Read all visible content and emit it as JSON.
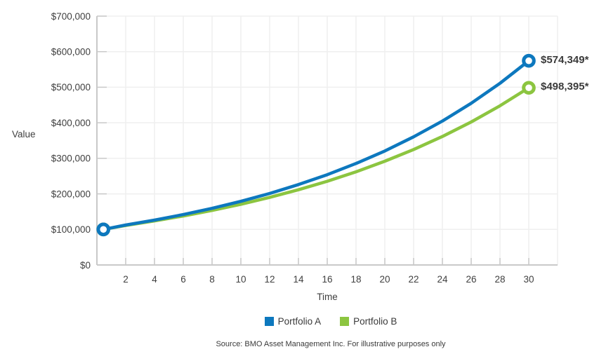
{
  "page": {
    "source_note": "Source: BMO Asset Management Inc. For illustrative purposes only"
  },
  "colors": {
    "portfolio_a": "#0d78be",
    "portfolio_b": "#8cc540",
    "gridline": "#efefef",
    "axis": "#c9c9c9",
    "tick": "#c9c9c9",
    "tick_text": "#404040"
  },
  "chart_data": {
    "type": "line",
    "title": "",
    "xlabel": "Time",
    "ylabel": "Value",
    "xlim": [
      0,
      32
    ],
    "ylim": [
      0,
      700000
    ],
    "grid": true,
    "legend_position": "bottom",
    "x_ticks": [
      2,
      4,
      6,
      8,
      10,
      12,
      14,
      16,
      18,
      20,
      22,
      24,
      26,
      28,
      30
    ],
    "x_grid_step": 2,
    "y_ticks": [
      0,
      100000,
      200000,
      300000,
      400000,
      500000,
      600000,
      700000
    ],
    "y_tick_labels": [
      "$0",
      "$100,000",
      "$200,000",
      "$300,000",
      "$400,000",
      "$500,000",
      "$600,000",
      "$700,000"
    ],
    "x": [
      0,
      2,
      4,
      6,
      8,
      10,
      12,
      14,
      16,
      18,
      20,
      22,
      24,
      26,
      28,
      30
    ],
    "series": [
      {
        "name": "Portfolio A",
        "color": "#0d78be",
        "end_label": "$574,349*",
        "final_value": 574349,
        "values": [
          100000,
          112360,
          126248,
          141852,
          159385,
          179085,
          201220,
          226090,
          254035,
          285434,
          320714,
          360354,
          404893,
          454938,
          511169,
          574349
        ]
      },
      {
        "name": "Portfolio B",
        "color": "#8cc540",
        "end_label": "$498,395*",
        "final_value": 498395,
        "values": [
          100000,
          111303,
          123882,
          137884,
          153469,
          170814,
          190121,
          211609,
          235526,
          262147,
          291776,
          324754,
          361459,
          402313,
          447784,
          498395
        ]
      }
    ]
  }
}
